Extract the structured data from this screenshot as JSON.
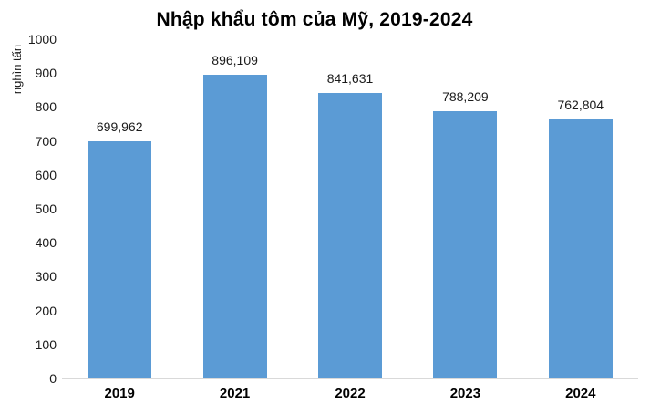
{
  "chart_data": {
    "type": "bar",
    "title": "Nhập khẩu tôm của Mỹ, 2019-2024",
    "ylabel": "nghìn tấn",
    "xlabel": "",
    "categories": [
      "2019",
      "2021",
      "2022",
      "2023",
      "2024"
    ],
    "values": [
      699962,
      896109,
      841631,
      788209,
      762804
    ],
    "value_labels": [
      "699,962",
      "896,109",
      "841,631",
      "788,209",
      "762,804"
    ],
    "values_axis_units": [
      699.962,
      896.109,
      841.631,
      788.209,
      762.804
    ],
    "ylim": [
      0,
      1000
    ],
    "yticks": [
      0,
      100,
      200,
      300,
      400,
      500,
      600,
      700,
      800,
      900,
      1000
    ],
    "grid": false,
    "legend_position": "none",
    "colors": {
      "bar": "#5B9BD5",
      "background": "#ffffff",
      "baseline": "#d9d9d9",
      "title_text": "#000000",
      "label_text": "#1a1a1a"
    }
  }
}
